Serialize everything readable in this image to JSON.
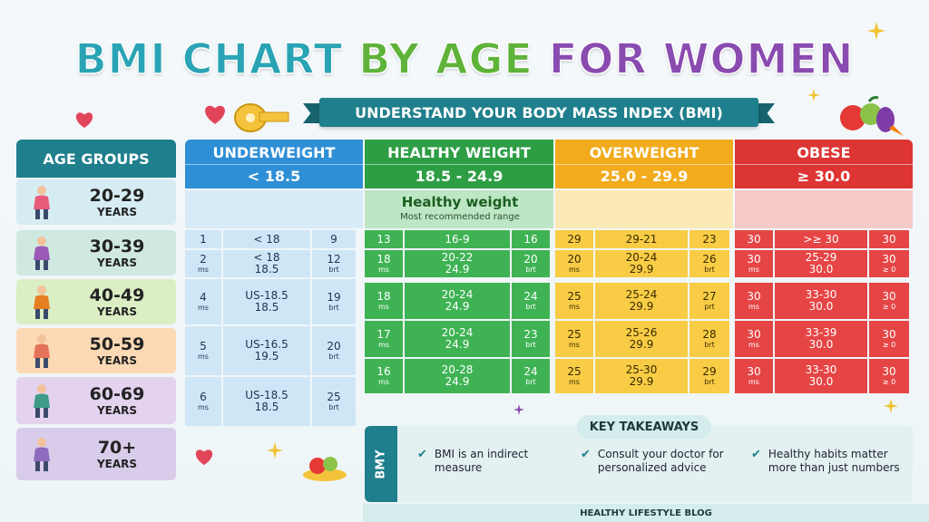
{
  "title": {
    "part1": "BMI CHART",
    "part2": "BY AGE",
    "part3": "FOR WOMEN"
  },
  "subtitle": "UNDERSTAND YOUR BODY MASS INDEX (BMI)",
  "age_header": "AGE GROUPS",
  "age_groups": [
    {
      "range": "20-29",
      "label": "YEARS",
      "color": "#d6ecf3"
    },
    {
      "range": "30-39",
      "label": "YEARS",
      "color": "#cfe9e1"
    },
    {
      "range": "40-49",
      "label": "YEARS",
      "color": "#dbeec4"
    },
    {
      "range": "50-59",
      "label": "YEARS",
      "color": "#fbd9b4"
    },
    {
      "range": "60-69",
      "label": "YEARS",
      "color": "#e3d3ef"
    },
    {
      "range": "70+",
      "label": "YEARS",
      "color": "#d9ccea"
    }
  ],
  "categories": [
    {
      "name": "UNDERWEIGHT",
      "range": "< 18.5",
      "color": "#2f8fd6",
      "light": "#cfe6f7",
      "band": "#d8ebf8"
    },
    {
      "name": "HEALTHY WEIGHT",
      "range": "18.5 - 24.9",
      "color": "#2e9e45",
      "light": "#3fb354",
      "band": "#bde6c4"
    },
    {
      "name": "OVERWEIGHT",
      "range": "25.0 - 29.9",
      "color": "#f2ab1c",
      "light": "#f8cc45",
      "band": "#fbe9b6"
    },
    {
      "name": "OBESE",
      "range": "≥ 30.0",
      "color": "#dd3434",
      "light": "#e54545",
      "band": "#f7c9c9"
    }
  ],
  "healthy_band": {
    "title": "Healthy weight",
    "note": "Most recommended range"
  },
  "underweight_rows": [
    {
      "a": "1",
      "a_u": "",
      "b": "< 18",
      "b2": "",
      "c": "9",
      "c_u": ""
    },
    {
      "a": "2",
      "a_u": "ms",
      "b": "< 18",
      "b2": "18.5",
      "c": "12",
      "c_u": "brt"
    },
    {
      "a": "4",
      "a_u": "ms",
      "b": "US-18.5",
      "b2": "18.5",
      "c": "19",
      "c_u": "brt"
    },
    {
      "a": "5",
      "a_u": "ms",
      "b": "US-16.5",
      "b2": "19.5",
      "c": "20",
      "c_u": "brt"
    },
    {
      "a": "6",
      "a_u": "ms",
      "b": "US-18.5",
      "b2": "18.5",
      "c": "25",
      "c_u": "brt"
    }
  ],
  "healthy_rows": [
    {
      "a": "13",
      "a_u": "",
      "b": "16-9",
      "b2": "",
      "c": "16",
      "c_u": ""
    },
    {
      "a": "18",
      "a_u": "ms",
      "b": "20-22",
      "b2": "24.9",
      "c": "20",
      "c_u": "brt"
    },
    {
      "a": "18",
      "a_u": "ms",
      "b": "20-24",
      "b2": "24.9",
      "c": "24",
      "c_u": "brt"
    },
    {
      "a": "17",
      "a_u": "ms",
      "b": "20-24",
      "b2": "24.9",
      "c": "23",
      "c_u": "brt"
    },
    {
      "a": "16",
      "a_u": "ms",
      "b": "20-28",
      "b2": "24.9",
      "c": "24",
      "c_u": "brt"
    }
  ],
  "overweight_rows": [
    {
      "a": "29",
      "a_u": "",
      "b": "29-21",
      "b2": "",
      "c": "23",
      "c_u": ""
    },
    {
      "a": "20",
      "a_u": "ms",
      "b": "20-24",
      "b2": "29.9",
      "c": "26",
      "c_u": "brt"
    },
    {
      "a": "25",
      "a_u": "ms",
      "b": "25-24",
      "b2": "29.9",
      "c": "27",
      "c_u": "prt"
    },
    {
      "a": "25",
      "a_u": "ms",
      "b": "25-26",
      "b2": "29.9",
      "c": "28",
      "c_u": "brt"
    },
    {
      "a": "25",
      "a_u": "ms",
      "b": "25-30",
      "b2": "29.9",
      "c": "29",
      "c_u": "brt"
    }
  ],
  "obese_rows": [
    {
      "a": "30",
      "a_u": "",
      "b": ">≥ 30",
      "b2": "",
      "c": "30",
      "c_u": ""
    },
    {
      "a": "30",
      "a_u": "ms",
      "b": "25-29",
      "b2": "30.0",
      "c": "30",
      "c_u": "≥ 0"
    },
    {
      "a": "30",
      "a_u": "ms",
      "b": "33-30",
      "b2": "30.0",
      "c": "30",
      "c_u": "≥ 0"
    },
    {
      "a": "30",
      "a_u": "ms",
      "b": "33-39",
      "b2": "30.0",
      "c": "30",
      "c_u": "≥ 0"
    },
    {
      "a": "30",
      "a_u": "ms",
      "b": "33-30",
      "b2": "30.0",
      "c": "30",
      "c_u": "≥ 0"
    }
  ],
  "takeaways": {
    "side_label": "BMY",
    "title": "KEY TAKEAWAYS",
    "items": [
      {
        "line1": "BMI is an indirect",
        "line2": "measure"
      },
      {
        "line1": "Consult your doctor for",
        "line2": "personalized advice"
      },
      {
        "line1": "Healthy habits matter",
        "line2": "more than just numbers"
      }
    ]
  },
  "footer": "HEALTHY LIFESTYLE BLOG",
  "icons": [
    "heart-icon",
    "tape-measure-icon",
    "sparkle-icon",
    "fruit-basket-icon",
    "check-icon"
  ]
}
